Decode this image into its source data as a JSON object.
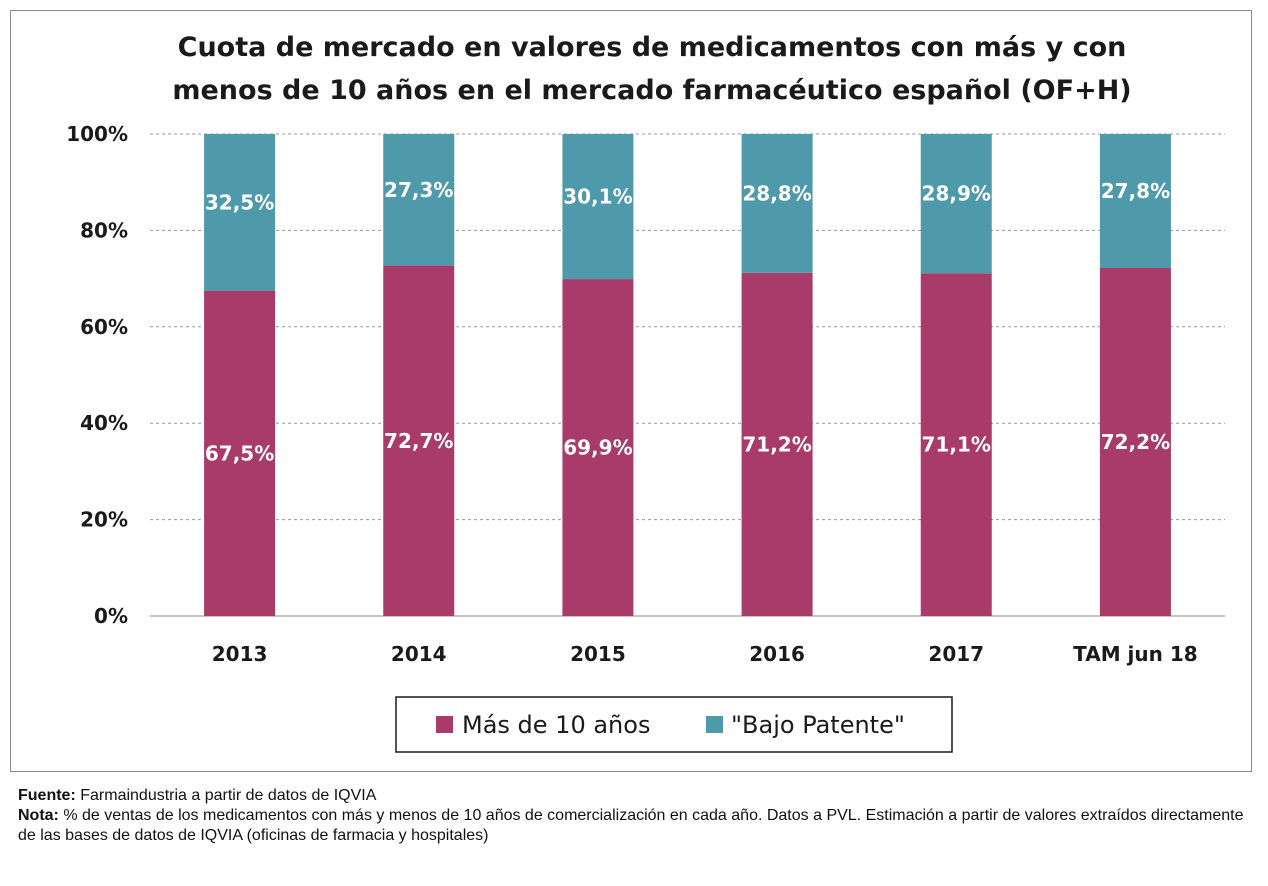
{
  "chart_data": {
    "type": "bar",
    "stacked": true,
    "title": "Cuota de mercado en valores de medicamentos con más y con menos de 10 años en el mercado farmacéutico español (OF+H)",
    "title_lines": [
      "Cuota de mercado en valores de medicamentos con más y con",
      "menos de 10 años en el mercado farmacéutico español (OF+H)"
    ],
    "categories": [
      "2013",
      "2014",
      "2015",
      "2016",
      "2017",
      "TAM jun 18"
    ],
    "series": [
      {
        "name": "Más de 10 años",
        "color": "#A83B69",
        "values": [
          67.5,
          72.7,
          69.9,
          71.2,
          71.1,
          72.2
        ],
        "labels": [
          "67,5%",
          "72,7%",
          "69,9%",
          "71,2%",
          "71,1%",
          "72,2%"
        ]
      },
      {
        "name": "\"Bajo Patente\"",
        "color": "#4E9AAA",
        "values": [
          32.5,
          27.3,
          30.1,
          28.8,
          28.9,
          27.8
        ],
        "labels": [
          "32,5%",
          "27,3%",
          "30,1%",
          "28,8%",
          "28,9%",
          "27,8%"
        ]
      }
    ],
    "ylim": [
      0,
      100
    ],
    "yticks": [
      "0%",
      "20%",
      "40%",
      "60%",
      "80%",
      "100%"
    ],
    "xlabel": "",
    "ylabel": "",
    "grid": true,
    "legend": "bottom"
  },
  "notes": {
    "source_label": "Fuente:",
    "source_text": "Farmaindustria a partir de datos de IQVIA",
    "note_label": "Nota:",
    "note_text": "% de ventas de los medicamentos con más y menos de 10 años de comercialización en cada año. Datos a PVL. Estimación a partir de valores extraídos directamente de las bases de datos de IQVIA (oficinas de farmacia y hospitales)"
  }
}
